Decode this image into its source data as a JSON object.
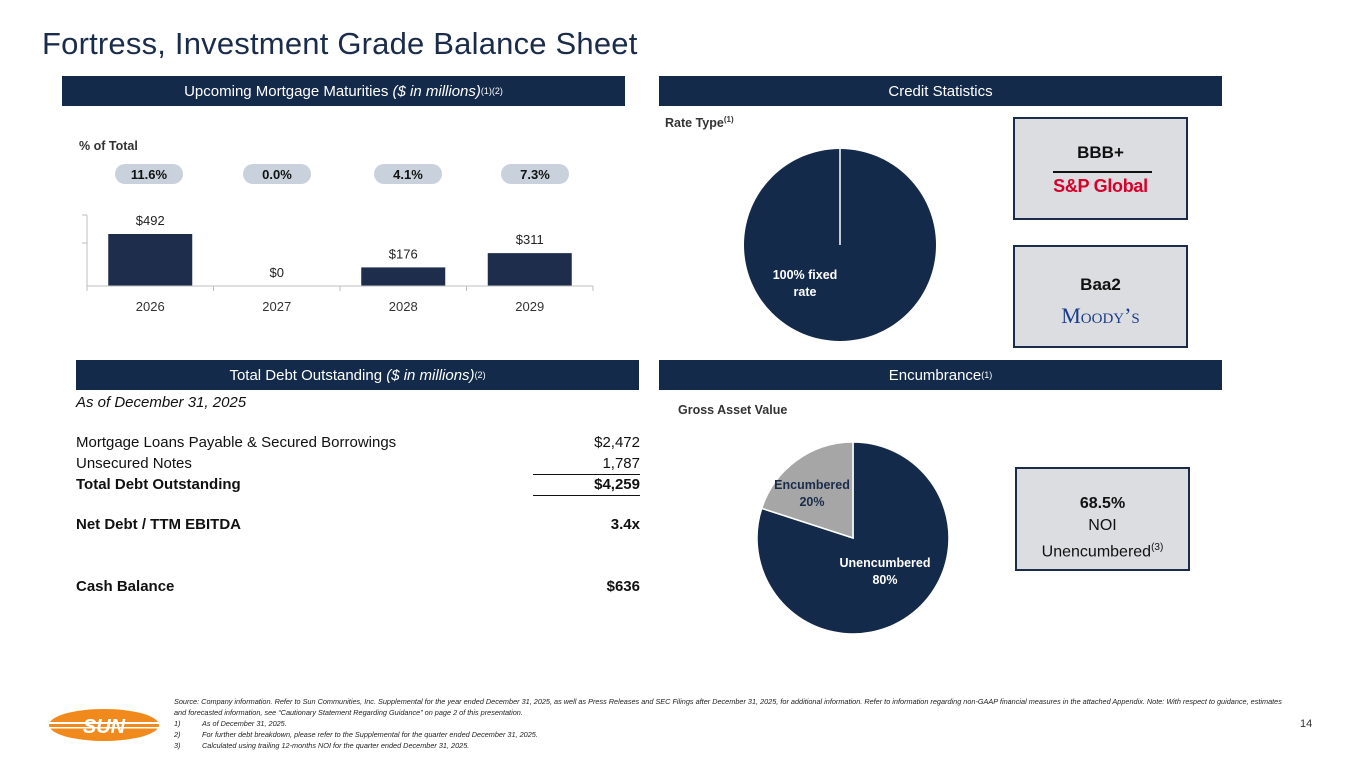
{
  "page": {
    "title": "Fortress, Investment Grade Balance Sheet",
    "page_number": "14"
  },
  "maturities": {
    "header": "Upcoming Mortgage Maturities",
    "header_italic": "($ in millions)",
    "header_sup": "(1)(2)",
    "pct_label": "% of Total",
    "pcts": [
      "11.6%",
      "0.0%",
      "4.1%",
      "7.3%"
    ]
  },
  "chart_data": {
    "type": "bar",
    "categories": [
      "2026",
      "2027",
      "2028",
      "2029"
    ],
    "values": [
      492,
      0,
      176,
      311
    ],
    "labels": [
      "$492",
      "$0",
      "$176",
      "$311"
    ],
    "ylim": [
      0,
      600
    ],
    "color": "#1f2d4c"
  },
  "credit": {
    "header": "Credit Statistics",
    "rate_type_label": "Rate Type",
    "rate_type_sup": "(1)",
    "rate_pie_label_line1": "100% fixed",
    "rate_pie_label_line2": "rate",
    "rate_pie_fixed_fraction": 1.0,
    "sp_rating": "BBB+",
    "sp_logo_text": "S&P Global",
    "moodys_rating": "Baa2",
    "moodys_logo_text": "Moody’s"
  },
  "debt": {
    "header": "Total Debt Outstanding",
    "header_italic": "($ in millions)",
    "header_sup": "(2)",
    "as_of": "As of December 31, 2025",
    "rows": [
      {
        "label": "Mortgage Loans Payable & Secured Borrowings",
        "value": "$2,472"
      },
      {
        "label": "Unsecured Notes",
        "value": "1,787"
      },
      {
        "label": "Total Debt Outstanding",
        "value": "$4,259"
      },
      {
        "label": "Net Debt / TTM EBITDA",
        "value": "3.4x"
      },
      {
        "label": "Cash Balance",
        "value": "$636"
      }
    ]
  },
  "encumbrance": {
    "header": "Encumbrance",
    "header_sup": "(1)",
    "gav_label": "Gross Asset Value",
    "slices": [
      {
        "name": "Unencumbered",
        "pct_label": "80%",
        "value": 80,
        "color": "#142a4a"
      },
      {
        "name": "Encumbered",
        "pct_label": "20%",
        "value": 20,
        "color": "#a6a6a6"
      }
    ],
    "noi_pct": "68.5%",
    "noi_line1": "NOI",
    "noi_line2": "Unencumbered",
    "noi_sup": "(3)"
  },
  "footnotes": {
    "source": "Source: Company information. Refer to Sun Communities, Inc. Supplemental for the year ended December 31, 2025, as well as Press Releases and SEC Filings after December 31, 2025, for additional information. Refer to information regarding non-GAAP financial measures in the attached Appendix. Note: With respect to guidance, estimates and forecasted information, see “Cautionary Statement Regarding Guidance” on page 2 of this presentation.",
    "items": [
      {
        "num": "1)",
        "text": "As of December 31, 2025."
      },
      {
        "num": "2)",
        "text": "For further debt breakdown, please refer to the Supplemental for the quarter ended December 31, 2025."
      },
      {
        "num": "3)",
        "text": "Calculated using trailing 12-months NOI for the quarter ended December 31, 2025."
      }
    ]
  },
  "logo": {
    "text": "SUN"
  }
}
